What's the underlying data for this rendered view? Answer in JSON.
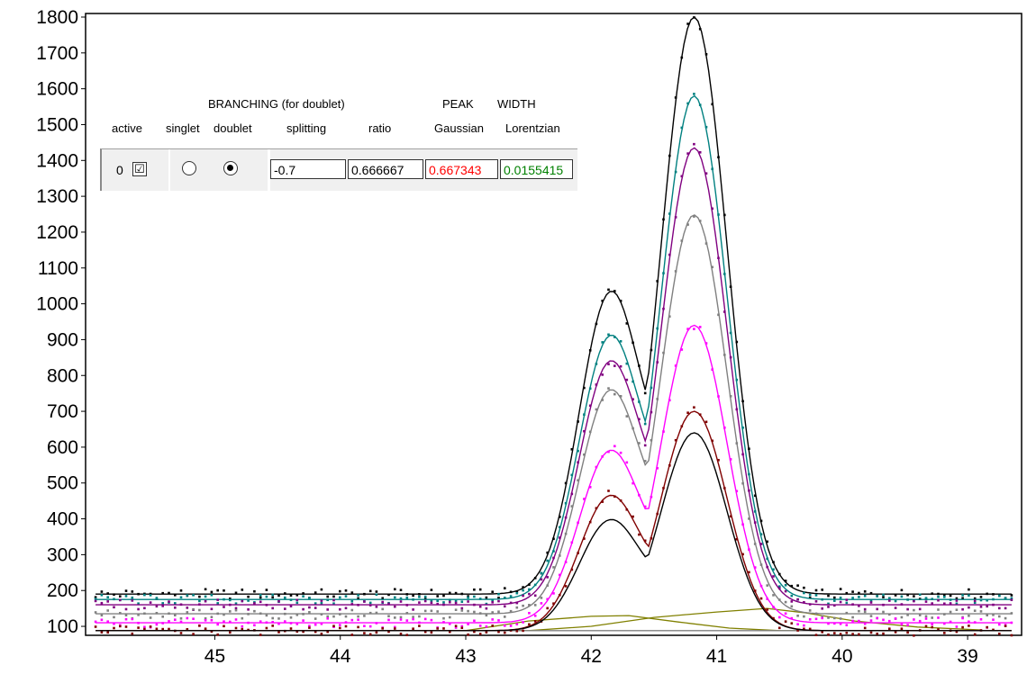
{
  "chart_data": {
    "type": "line",
    "x_reversed": true,
    "xlim": [
      46.03,
      38.57
    ],
    "ylim": [
      75,
      1810
    ],
    "x_ticks": [
      45,
      44,
      43,
      42,
      41,
      40,
      39
    ],
    "y_ticks": [
      100,
      200,
      300,
      400,
      500,
      600,
      700,
      800,
      900,
      1000,
      1100,
      1200,
      1300,
      1400,
      1500,
      1600,
      1700,
      1800
    ],
    "grid": false,
    "series": [
      {
        "color": "#000000",
        "base": 190,
        "height": 1610,
        "shoulder": 0.56,
        "dots": true
      },
      {
        "color": "#008080",
        "base": 175,
        "height": 1405,
        "shoulder": 0.56,
        "dots": true
      },
      {
        "color": "#800080",
        "base": 160,
        "height": 1275,
        "shoulder": 0.57,
        "dots": true
      },
      {
        "color": "#808080",
        "base": 135,
        "height": 1113,
        "shoulder": 0.6,
        "dots": true
      },
      {
        "color": "#ff00ff",
        "base": 110,
        "height": 830,
        "shoulder": 0.62,
        "dots": true
      },
      {
        "color": "#800000",
        "base": 88,
        "height": 612,
        "shoulder": 0.66,
        "dots": true
      },
      {
        "color": "#000000",
        "base": 88,
        "height": 552,
        "shoulder": 0.6,
        "dots": false
      }
    ],
    "background_lines": [
      {
        "color": "#808000",
        "points": [
          [
            45.9,
            88
          ],
          [
            43.0,
            88
          ],
          [
            42.5,
            115
          ],
          [
            42.0,
            128
          ],
          [
            41.7,
            130
          ],
          [
            41.3,
            112
          ],
          [
            40.9,
            95
          ],
          [
            40.5,
            88
          ],
          [
            38.7,
            88
          ]
        ]
      },
      {
        "color": "#808000",
        "points": [
          [
            45.9,
            88
          ],
          [
            42.5,
            88
          ],
          [
            42.0,
            100
          ],
          [
            41.5,
            125
          ],
          [
            41.0,
            140
          ],
          [
            40.6,
            150
          ],
          [
            40.3,
            138
          ],
          [
            39.9,
            115
          ],
          [
            39.4,
            98
          ],
          [
            38.9,
            90
          ]
        ]
      },
      {
        "color": "#808080",
        "points": [
          [
            45.9,
            88
          ],
          [
            38.7,
            88
          ]
        ]
      }
    ]
  },
  "panel": {
    "header_branching": "BRANCHING (for doublet)",
    "header_peak": "PEAK",
    "header_width": "WIDTH",
    "col_active": "active",
    "col_singlet": "singlet",
    "col_doublet": "doublet",
    "col_splitting": "splitting",
    "col_ratio": "ratio",
    "col_gaussian": "Gaussian",
    "col_lorentzian": "Lorentzian",
    "row_index": "0",
    "active_checked": "☑",
    "splitting_value": "-0.7",
    "ratio_value": "0.666667",
    "gaussian_value": "0.667343",
    "lorentzian_value": "0.0155415",
    "gaussian_color": "#ff0000",
    "lorentzian_color": "#008000",
    "selected_branching": "doublet"
  }
}
